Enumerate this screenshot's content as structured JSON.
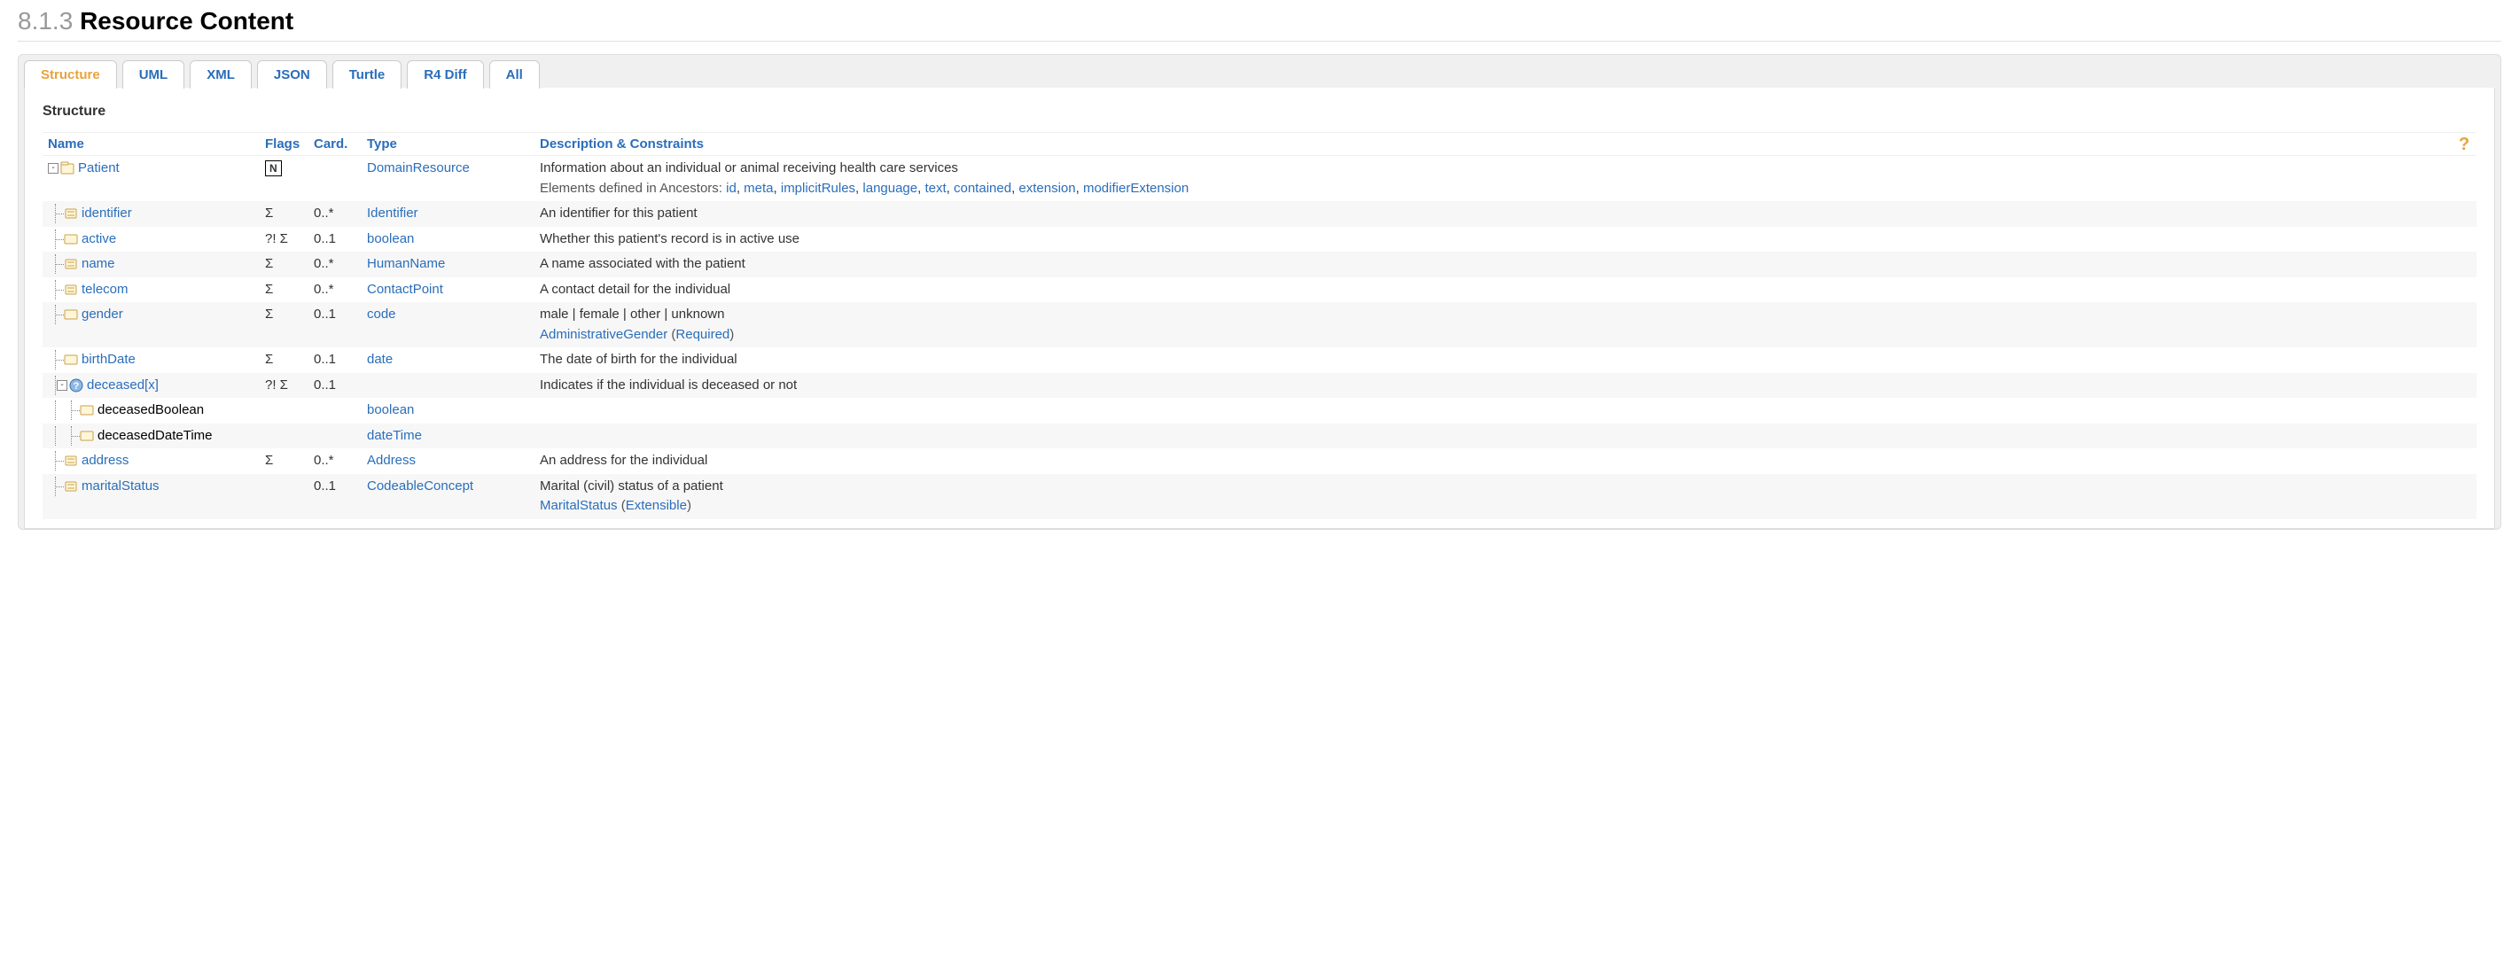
{
  "heading": {
    "number": "8.1.3",
    "title": "Resource Content"
  },
  "tabs": [
    "Structure",
    "UML",
    "XML",
    "JSON",
    "Turtle",
    "R4 Diff",
    "All"
  ],
  "activeTab": "Structure",
  "structTitle": "Structure",
  "columns": {
    "name": "Name",
    "flags": "Flags",
    "card": "Card.",
    "type": "Type",
    "desc": "Description & Constraints"
  },
  "ancestorsIntro": "Elements defined in Ancestors: ",
  "ancestors": [
    "id",
    "meta",
    "implicitRules",
    "language",
    "text",
    "contained",
    "extension",
    "modifierExtension"
  ],
  "rows": [
    {
      "name": "Patient",
      "indent": 0,
      "icon": "resource",
      "nameLink": true,
      "flagBox": "N",
      "card": "",
      "type": "DomainResource",
      "desc": "Information about an individual or animal receiving health care services",
      "showAncestors": true,
      "expand": "-"
    },
    {
      "name": "identifier",
      "indent": 1,
      "icon": "datatype",
      "nameLink": true,
      "flags": "Σ",
      "card": "0..*",
      "type": "Identifier",
      "desc": "An identifier for this patient"
    },
    {
      "name": "active",
      "indent": 1,
      "icon": "primitive",
      "nameLink": true,
      "flags": "?! Σ",
      "card": "0..1",
      "type": "boolean",
      "desc": "Whether this patient's record is in active use"
    },
    {
      "name": "name",
      "indent": 1,
      "icon": "datatype",
      "nameLink": true,
      "flags": "Σ",
      "card": "0..*",
      "type": "HumanName",
      "desc": "A name associated with the patient"
    },
    {
      "name": "telecom",
      "indent": 1,
      "icon": "datatype",
      "nameLink": true,
      "flags": "Σ",
      "card": "0..*",
      "type": "ContactPoint",
      "desc": "A contact detail for the individual"
    },
    {
      "name": "gender",
      "indent": 1,
      "icon": "primitive",
      "nameLink": true,
      "flags": "Σ",
      "card": "0..1",
      "type": "code",
      "desc": "male | female | other | unknown",
      "bindingName": "AdministrativeGender",
      "bindingStrength": "Required"
    },
    {
      "name": "birthDate",
      "indent": 1,
      "icon": "primitive",
      "nameLink": true,
      "flags": "Σ",
      "card": "0..1",
      "type": "date",
      "desc": "The date of birth for the individual"
    },
    {
      "name": "deceased[x]",
      "indent": 1,
      "icon": "choice",
      "nameLink": true,
      "flags": "?! Σ",
      "card": "0..1",
      "type": "",
      "desc": "Indicates if the individual is deceased or not",
      "expand": "-"
    },
    {
      "name": "deceasedBoolean",
      "indent": 2,
      "icon": "primitive",
      "nameLink": false,
      "flags": "",
      "card": "",
      "type": "boolean",
      "desc": ""
    },
    {
      "name": "deceasedDateTime",
      "indent": 2,
      "icon": "primitive",
      "nameLink": false,
      "flags": "",
      "card": "",
      "type": "dateTime",
      "desc": ""
    },
    {
      "name": "address",
      "indent": 1,
      "icon": "datatype",
      "nameLink": true,
      "flags": "Σ",
      "card": "0..*",
      "type": "Address",
      "desc": "An address for the individual"
    },
    {
      "name": "maritalStatus",
      "indent": 1,
      "icon": "datatype",
      "nameLink": true,
      "flags": "",
      "card": "0..1",
      "type": "CodeableConcept",
      "desc": "Marital (civil) status of a patient",
      "bindingName": "MaritalStatus",
      "bindingStrength": "Extensible"
    }
  ],
  "colors": {
    "link": "#2a6ebb",
    "active": "#e8a33d",
    "altRow": "#f7f7f7"
  }
}
